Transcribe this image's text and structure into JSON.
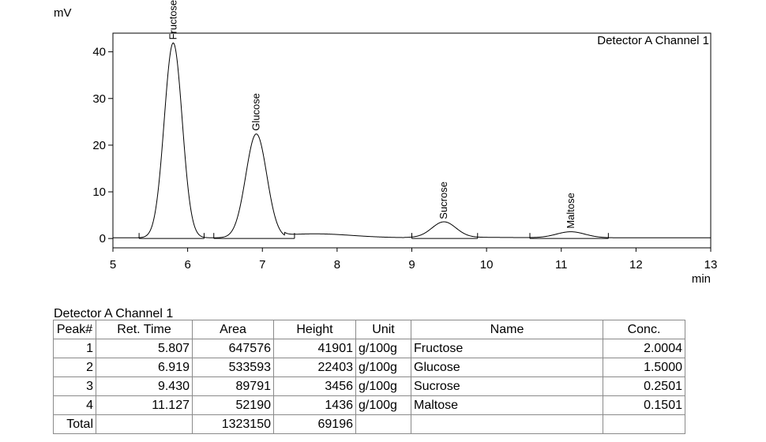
{
  "chart_data": {
    "type": "line",
    "title": "Detector A Channel 1",
    "ylabel": "mV",
    "xlabel": "min",
    "xlim": [
      5,
      13
    ],
    "ylim": [
      -2,
      44
    ],
    "xticks": [
      5,
      6,
      7,
      8,
      9,
      10,
      11,
      12,
      13
    ],
    "yticks": [
      0,
      10,
      20,
      30,
      40
    ],
    "peaks": [
      {
        "name": "Fructose",
        "ret_time": 5.807,
        "height_mv": 41.9,
        "width": 0.12
      },
      {
        "name": "Glucose",
        "ret_time": 6.919,
        "height_mv": 22.4,
        "width": 0.14
      },
      {
        "name": "Sucrose",
        "ret_time": 9.43,
        "height_mv": 3.46,
        "width": 0.16
      },
      {
        "name": "Maltose",
        "ret_time": 11.127,
        "height_mv": 1.44,
        "width": 0.19
      }
    ],
    "integration_baselines": [
      {
        "start": 5.35,
        "end": 6.22
      },
      {
        "start": 6.35,
        "end": 7.43
      },
      {
        "start": 9.0,
        "end": 9.88
      },
      {
        "start": 10.58,
        "end": 11.63
      }
    ]
  },
  "table": {
    "title": "Detector A Channel 1",
    "headers": [
      "Peak#",
      "Ret. Time",
      "Area",
      "Height",
      "Unit",
      "Name",
      "Conc."
    ],
    "rows": [
      [
        "1",
        "5.807",
        "647576",
        "41901",
        "g/100g",
        "Fructose",
        "2.0004"
      ],
      [
        "2",
        "6.919",
        "533593",
        "22403",
        "g/100g",
        "Glucose",
        "1.5000"
      ],
      [
        "3",
        "9.430",
        "89791",
        "3456",
        "g/100g",
        "Sucrose",
        "0.2501"
      ],
      [
        "4",
        "11.127",
        "52190",
        "1436",
        "g/100g",
        "Maltose",
        "0.1501"
      ]
    ],
    "total": [
      "Total",
      "",
      "1323150",
      "69196",
      "",
      "",
      ""
    ]
  }
}
